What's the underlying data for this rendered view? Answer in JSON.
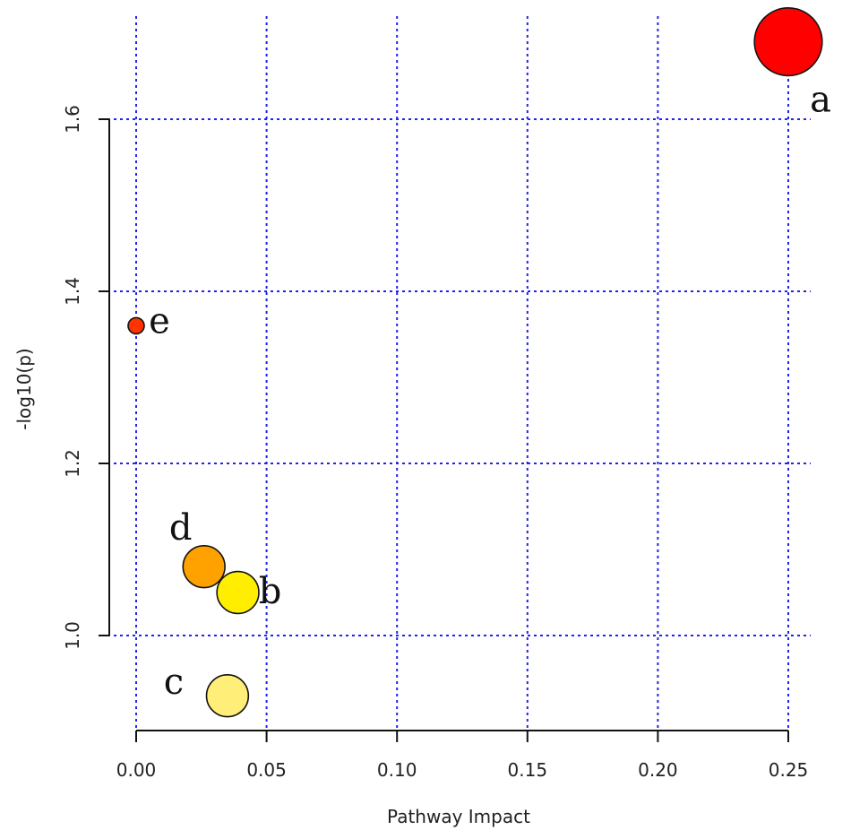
{
  "chart_data": {
    "type": "scatter",
    "title": "",
    "xlabel": "Pathway Impact",
    "ylabel": "-log10(p)",
    "xlim": [
      0,
      0.25
    ],
    "ylim": [
      0.9,
      1.7
    ],
    "x_ticks": [
      0.0,
      0.05,
      0.1,
      0.15,
      0.2,
      0.25
    ],
    "x_tick_labels": [
      "0.00",
      "0.05",
      "0.10",
      "0.15",
      "0.20",
      "0.25"
    ],
    "y_ticks": [
      1.0,
      1.2,
      1.4,
      1.6
    ],
    "y_tick_labels": [
      "1.0",
      "1.2",
      "1.4",
      "1.6"
    ],
    "grid": true,
    "grid_color": "#2222ee",
    "points": [
      {
        "label": "a",
        "x": 0.25,
        "y": 1.69,
        "color": "#ff0000",
        "size": 5
      },
      {
        "label": "b",
        "x": 0.039,
        "y": 1.05,
        "color": "#ffee00",
        "size": 3
      },
      {
        "label": "c",
        "x": 0.035,
        "y": 0.93,
        "color": "#ffee77",
        "size": 3
      },
      {
        "label": "d",
        "x": 0.026,
        "y": 1.08,
        "color": "#ffa200",
        "size": 3
      },
      {
        "label": "e",
        "x": 0.0,
        "y": 1.36,
        "color": "#ff3300",
        "size": 1
      }
    ]
  }
}
